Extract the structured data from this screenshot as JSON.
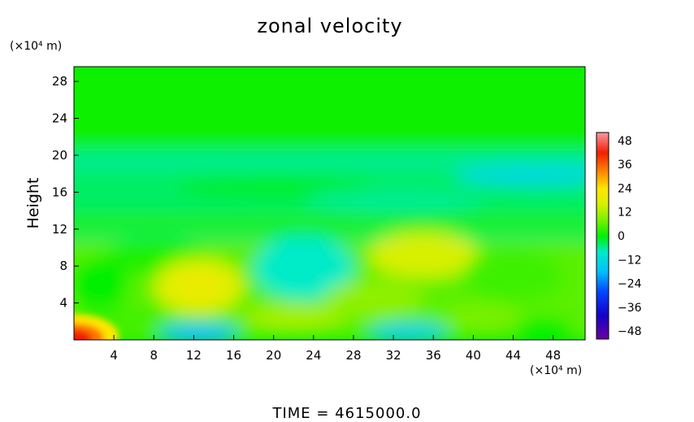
{
  "chart_data": {
    "type": "heatmap",
    "title": "zonal velocity",
    "ylabel": "Height",
    "x_unit": "(×10⁴ m)",
    "y_unit": "(×10⁴ m)",
    "x_ticks": [
      4,
      8,
      12,
      16,
      20,
      24,
      28,
      32,
      36,
      40,
      44,
      48
    ],
    "y_ticks": [
      4,
      8,
      12,
      16,
      20,
      24,
      28
    ],
    "xlim": [
      0,
      51.2
    ],
    "ylim": [
      0,
      29.6
    ],
    "colorbar": {
      "ticks": [
        48,
        36,
        24,
        12,
        0,
        -12,
        -24,
        -36,
        -48
      ],
      "labels": [
        "48",
        "36",
        "24",
        "12",
        "0",
        "−12",
        "−24",
        "−36",
        "−48"
      ],
      "range": [
        -52,
        52
      ]
    },
    "field_features": [
      {
        "desc": "near-uniform weak flow",
        "y_range": [
          20,
          29.6
        ],
        "value": 1
      },
      {
        "desc": "weak easterly band",
        "x": 51,
        "y": 18,
        "value": -12
      },
      {
        "desc": "westerly maximum",
        "x": 12.5,
        "y": 5.8,
        "value": 18
      },
      {
        "desc": "westerly maximum",
        "x": 35,
        "y": 9.2,
        "value": 16
      },
      {
        "desc": "easterly minimum",
        "x": 23,
        "y": 8,
        "value": -8
      },
      {
        "desc": "strong surface westerly",
        "x": 0.5,
        "y": 0.6,
        "value": 40
      },
      {
        "desc": "surface easterly",
        "x": 12.5,
        "y": 0.5,
        "value": -18
      },
      {
        "desc": "surface easterly",
        "x": 33.5,
        "y": 0.6,
        "value": -14
      }
    ],
    "footer": "TIME = 4615000.0"
  }
}
